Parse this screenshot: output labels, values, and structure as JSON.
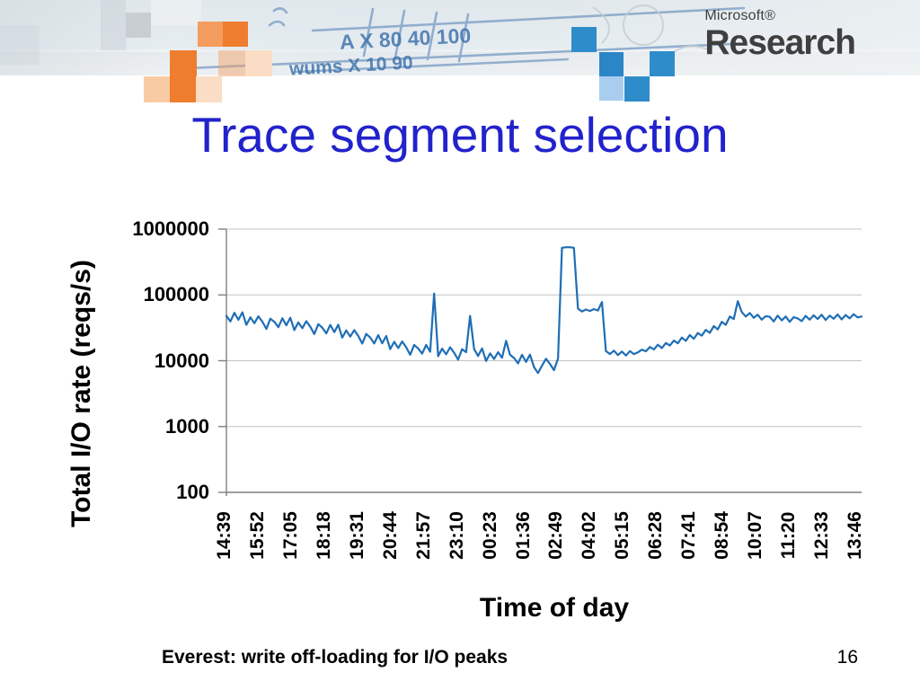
{
  "header": {
    "logo": {
      "microsoft": "Microsoft®",
      "research": "Research"
    },
    "whiteboard_row1": "A   X  80  40  100",
    "whiteboard_row2": "wums         X  10   90"
  },
  "title": "Trace segment selection",
  "chart_data": {
    "type": "line",
    "title": "",
    "xlabel": "Time of day",
    "ylabel": "Total I/O rate (reqs/s)",
    "y_scale": "log",
    "ylim": [
      100,
      1000000
    ],
    "grid": true,
    "legend": "none",
    "line_color": "#1F6EB5",
    "y_tick_labels": [
      "1000000",
      "100000",
      "10000",
      "1000",
      "100"
    ],
    "x_tick_labels": [
      "14:39",
      "15:52",
      "17:05",
      "18:18",
      "19:31",
      "20:44",
      "21:57",
      "23:10",
      "00:23",
      "01:36",
      "02:49",
      "04:02",
      "05:15",
      "06:28",
      "07:41",
      "08:54",
      "10:07",
      "11:20",
      "12:33",
      "13:46"
    ],
    "series": [
      {
        "name": "Total I/O rate",
        "values": [
          48000,
          39500,
          53600,
          41800,
          54400,
          35000,
          45600,
          37100,
          47300,
          39200,
          30400,
          43500,
          39000,
          32300,
          44100,
          34500,
          45100,
          29200,
          38200,
          31200,
          39900,
          32800,
          25400,
          35900,
          31800,
          26000,
          35100,
          27200,
          35300,
          22400,
          28800,
          23200,
          29200,
          23800,
          18200,
          25500,
          22500,
          18300,
          24500,
          18400,
          23700,
          15000,
          19400,
          15600,
          19600,
          16000,
          12300,
          17400,
          15400,
          12800,
          17400,
          13700,
          105000,
          11700,
          15300,
          12500,
          16000,
          13200,
          10400,
          15000,
          13500,
          48000,
          15100,
          11800,
          15400,
          9900,
          12900,
          10600,
          13500,
          11100,
          20000,
          12300,
          11000,
          9100,
          12300,
          9600,
          12400,
          8000,
          6500,
          8400,
          10700,
          8900,
          7200,
          10800,
          520000,
          530000,
          530000,
          520000,
          62000,
          56000,
          60000,
          57000,
          61000,
          58000,
          78000,
          14000,
          12600,
          14200,
          12200,
          13800,
          12000,
          14000,
          12600,
          13400,
          14700,
          13900,
          16200,
          14800,
          17500,
          15600,
          18600,
          17000,
          20200,
          18400,
          22500,
          20000,
          24600,
          21500,
          26400,
          24000,
          29500,
          26500,
          33500,
          30000,
          39000,
          35000,
          47000,
          43000,
          80000,
          55000,
          47000,
          53000,
          45000,
          50000,
          42000,
          47500,
          46500,
          39500,
          48500,
          41000,
          47000,
          39000,
          46000,
          44000,
          40000,
          48000,
          42000,
          49000,
          43000,
          50000,
          41500,
          48500,
          43500,
          50500,
          42500,
          49500,
          44000,
          51000,
          45500,
          47000
        ]
      }
    ]
  },
  "footer": {
    "left": "Everest: write off-loading for I/O peaks",
    "page_number": "16"
  },
  "colors": {
    "title_blue": "#2222CC",
    "line_blue": "#1F6EB5",
    "gridline": "#C3C3C3",
    "axis": "#7F7F7F",
    "orange_strong": "#EE7D2E",
    "orange_mid": "#F59C5F",
    "orange_pale": "#F9CBA5",
    "orange_palest": "#FBDDC5",
    "blue_mid": "#2F8CCB",
    "blue_light": "#A9CDEF"
  }
}
